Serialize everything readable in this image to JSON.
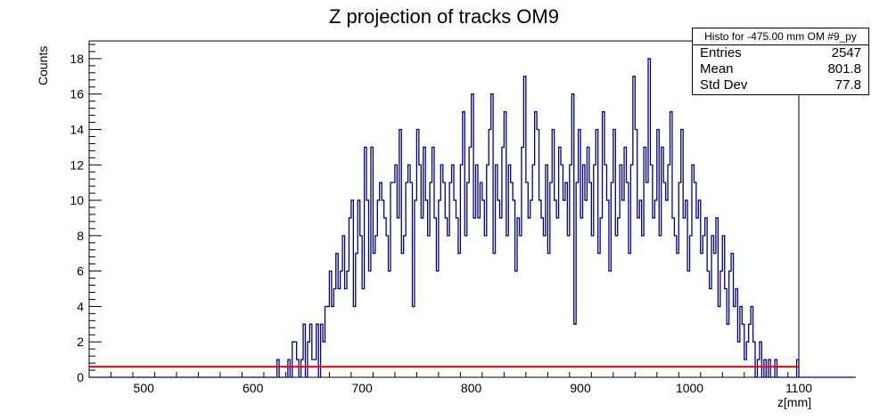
{
  "chart_data": {
    "type": "histogram",
    "title": "Z projection of tracks OM9",
    "xlabel": "z[mm]",
    "ylabel": "Counts",
    "xlim": [
      450,
      1100
    ],
    "ylim": [
      0,
      19
    ],
    "xticks": [
      500,
      600,
      700,
      800,
      900,
      1000,
      1100
    ],
    "yticks": [
      0,
      2,
      4,
      6,
      8,
      10,
      12,
      14,
      16,
      18
    ],
    "bin_width": 2,
    "hist_start": 450,
    "grid": false,
    "line_color": "#000080",
    "fit_line": {
      "y": 0.6,
      "color": "#ff0000"
    },
    "values": [
      0,
      0,
      0,
      0,
      0,
      0,
      0,
      0,
      0,
      0,
      0,
      0,
      0,
      0,
      0,
      0,
      0,
      0,
      0,
      0,
      0,
      0,
      0,
      0,
      0,
      0,
      0,
      0,
      0,
      0,
      0,
      0,
      0,
      0,
      0,
      0,
      0,
      0,
      0,
      0,
      0,
      0,
      0,
      0,
      0,
      0,
      0,
      0,
      0,
      0,
      0,
      0,
      0,
      0,
      0,
      0,
      0,
      0,
      0,
      0,
      0,
      0,
      0,
      0,
      0,
      0,
      0,
      0,
      0,
      0,
      0,
      0,
      0,
      0,
      0,
      0,
      0,
      0,
      0,
      0,
      0,
      0,
      0,
      0,
      0,
      0,
      1,
      0,
      0,
      0,
      0,
      1,
      0,
      2,
      2,
      1,
      0,
      1,
      3,
      0,
      2,
      3,
      1,
      1,
      3,
      0,
      3,
      2,
      4,
      4,
      6,
      4,
      5,
      7,
      5,
      6,
      8,
      5,
      6,
      9,
      10,
      4,
      7,
      10,
      8,
      5,
      13,
      10,
      6,
      13,
      7,
      8,
      10,
      11,
      10,
      9,
      8,
      6,
      11,
      11,
      12,
      9,
      14,
      7,
      8,
      11,
      12,
      11,
      4,
      10,
      14,
      12,
      9,
      13,
      10,
      8,
      11,
      13,
      9,
      6,
      10,
      12,
      11,
      9,
      8,
      11,
      12,
      10,
      9,
      7,
      12,
      15,
      8,
      11,
      13,
      16,
      9,
      12,
      9,
      11,
      10,
      8,
      12,
      14,
      16,
      7,
      12,
      10,
      9,
      13,
      15,
      8,
      12,
      11,
      10,
      6,
      9,
      8,
      13,
      17,
      11,
      9,
      10,
      12,
      15,
      14,
      10,
      9,
      8,
      12,
      7,
      11,
      14,
      10,
      9,
      13,
      12,
      10,
      11,
      8,
      12,
      16,
      3,
      11,
      14,
      9,
      12,
      10,
      13,
      11,
      8,
      12,
      14,
      7,
      9,
      15,
      12,
      10,
      6,
      11,
      14,
      8,
      9,
      12,
      10,
      13,
      11,
      7,
      12,
      17,
      14,
      9,
      10,
      8,
      13,
      11,
      18,
      12,
      9,
      10,
      14,
      8,
      13,
      11,
      10,
      12,
      15,
      9,
      8,
      7,
      11,
      14,
      9,
      10,
      6,
      8,
      12,
      11,
      9,
      10,
      7,
      8,
      9,
      6,
      5,
      8,
      7,
      9,
      4,
      6,
      8,
      5,
      3,
      6,
      7,
      4,
      5,
      2,
      4,
      3,
      1,
      2,
      3,
      4,
      2,
      0,
      1,
      2,
      0,
      1,
      0,
      1,
      0,
      0,
      1,
      0,
      0,
      0,
      0,
      0,
      0,
      0,
      0,
      0,
      1,
      0,
      0,
      0,
      0,
      0,
      0,
      0,
      0,
      0,
      0,
      0,
      0,
      0,
      0,
      0,
      0,
      0,
      0,
      0,
      0,
      0,
      0,
      0,
      0,
      0,
      0
    ]
  },
  "stats": {
    "name": "Histo for -475.00 mm OM #9_py",
    "entries_label": "Entries",
    "entries": "2547",
    "mean_label": "Mean",
    "mean": "801.8",
    "stddev_label": "Std Dev",
    "stddev": "77.8"
  }
}
